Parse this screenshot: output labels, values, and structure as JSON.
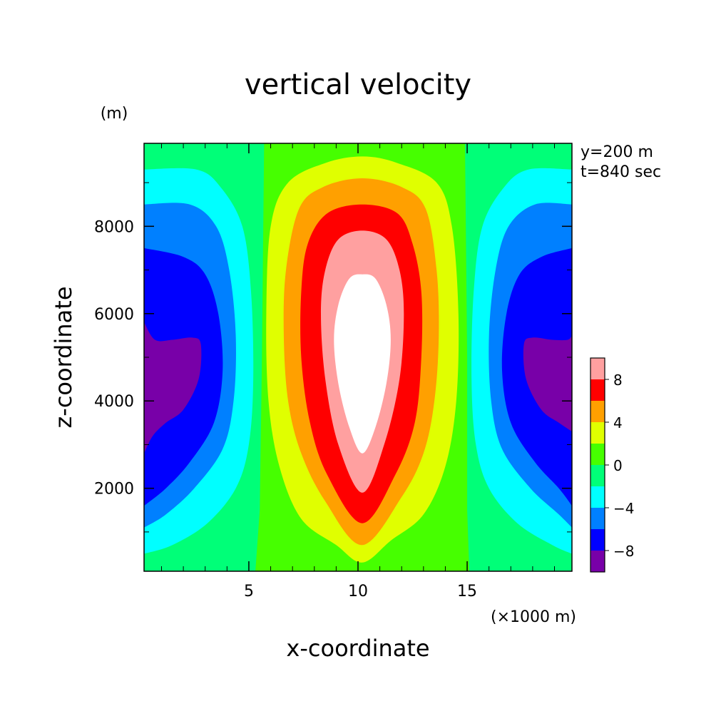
{
  "chart_data": {
    "type": "heatmap",
    "subtype": "filled-contour",
    "title": "vertical velocity",
    "xlabel": "x-coordinate",
    "ylabel": "z-coordinate",
    "x_unit": "(×1000 m)",
    "y_unit": "(m)",
    "annotations": [
      "y=200 m",
      "t=840 sec"
    ],
    "xlim": [
      0.2,
      19.8
    ],
    "ylim": [
      100,
      9900
    ],
    "x_ticks": [
      5,
      10,
      15
    ],
    "x_tick_labels": [
      "5",
      "10",
      "15"
    ],
    "y_ticks": [
      2000,
      4000,
      6000,
      8000
    ],
    "y_tick_labels": [
      "2000",
      "4000",
      "6000",
      "8000"
    ],
    "grid": false,
    "colorbar": {
      "levels": [
        -10,
        -8,
        -6,
        -4,
        -2,
        0,
        2,
        4,
        6,
        8,
        10
      ],
      "tick_values": [
        -8,
        -4,
        0,
        4,
        8
      ],
      "tick_labels": [
        "−8",
        "−4",
        "0",
        "4",
        "8"
      ],
      "colors": [
        "#7800a8",
        "#0000ff",
        "#0080ff",
        "#00ffff",
        "#00ff78",
        "#46ff00",
        "#e0ff00",
        "#ffa000",
        "#ff0000",
        "#ffa0a0"
      ],
      "above_max_color": "#ffffff"
    },
    "contours": [
      {
        "level": 0,
        "sides": [
          "left",
          "right"
        ],
        "points": [
          [
            5.7,
            9900
          ],
          [
            5.6,
            5000
          ],
          [
            5.5,
            1500
          ],
          [
            5.3,
            100
          ]
        ]
      },
      {
        "level": 0,
        "sides": [
          "left",
          "right"
        ],
        "points": [
          [
            14.9,
            9900
          ],
          [
            15.0,
            5000
          ],
          [
            15.0,
            1500
          ],
          [
            15.1,
            100
          ]
        ]
      },
      {
        "level": 2,
        "points": [
          [
            10.2,
            9600
          ],
          [
            11.8,
            9450
          ],
          [
            13.6,
            9000
          ],
          [
            14.3,
            8000
          ],
          [
            14.6,
            6000
          ],
          [
            14.5,
            4000
          ],
          [
            14.0,
            2500
          ],
          [
            13.0,
            1400
          ],
          [
            11.5,
            800
          ],
          [
            10.2,
            300
          ],
          [
            9.0,
            700
          ],
          [
            7.4,
            1300
          ],
          [
            6.4,
            2500
          ],
          [
            5.9,
            4000
          ],
          [
            5.8,
            6000
          ],
          [
            6.0,
            8000
          ],
          [
            6.8,
            9000
          ],
          [
            8.5,
            9450
          ]
        ]
      },
      {
        "level": 4,
        "points": [
          [
            10.2,
            9100
          ],
          [
            12.0,
            8900
          ],
          [
            13.1,
            8400
          ],
          [
            13.6,
            7000
          ],
          [
            13.7,
            5500
          ],
          [
            13.5,
            4000
          ],
          [
            13.0,
            2800
          ],
          [
            12.0,
            1800
          ],
          [
            10.2,
            700
          ],
          [
            8.5,
            1700
          ],
          [
            7.4,
            2800
          ],
          [
            6.8,
            4000
          ],
          [
            6.6,
            5500
          ],
          [
            6.7,
            7000
          ],
          [
            7.3,
            8400
          ],
          [
            8.4,
            8900
          ]
        ]
      },
      {
        "level": 6,
        "points": [
          [
            10.2,
            8500
          ],
          [
            11.8,
            8300
          ],
          [
            12.5,
            7600
          ],
          [
            12.9,
            6500
          ],
          [
            12.9,
            5000
          ],
          [
            12.6,
            3500
          ],
          [
            11.7,
            2300
          ],
          [
            10.2,
            1200
          ],
          [
            8.6,
            2300
          ],
          [
            7.8,
            3500
          ],
          [
            7.4,
            5000
          ],
          [
            7.4,
            6500
          ],
          [
            7.7,
            7600
          ],
          [
            8.6,
            8300
          ]
        ]
      },
      {
        "level": 8,
        "points": [
          [
            10.2,
            7900
          ],
          [
            11.3,
            7700
          ],
          [
            11.9,
            7000
          ],
          [
            12.1,
            6000
          ],
          [
            11.9,
            4500
          ],
          [
            11.2,
            3000
          ],
          [
            10.2,
            1900
          ],
          [
            9.1,
            3000
          ],
          [
            8.5,
            4500
          ],
          [
            8.3,
            6000
          ],
          [
            8.5,
            7000
          ],
          [
            9.1,
            7700
          ]
        ]
      },
      {
        "level": 10,
        "points": [
          [
            10.2,
            6900
          ],
          [
            10.8,
            6800
          ],
          [
            11.3,
            6200
          ],
          [
            11.5,
            5400
          ],
          [
            11.3,
            4400
          ],
          [
            10.8,
            3400
          ],
          [
            10.2,
            2800
          ],
          [
            9.6,
            3400
          ],
          [
            9.1,
            4400
          ],
          [
            8.9,
            5400
          ],
          [
            9.1,
            6200
          ],
          [
            9.6,
            6800
          ]
        ]
      },
      {
        "level": -2,
        "side": "left",
        "points": [
          [
            0.2,
            9300
          ],
          [
            2.6,
            9300
          ],
          [
            3.7,
            8900
          ],
          [
            4.7,
            8000
          ],
          [
            5.1,
            6500
          ],
          [
            5.2,
            4500
          ],
          [
            5.0,
            3000
          ],
          [
            4.4,
            2000
          ],
          [
            3.1,
            1200
          ],
          [
            1.5,
            700
          ],
          [
            0.2,
            500
          ]
        ]
      },
      {
        "level": -4,
        "side": "left",
        "points": [
          [
            0.2,
            8500
          ],
          [
            2.3,
            8500
          ],
          [
            3.5,
            8000
          ],
          [
            4.1,
            7000
          ],
          [
            4.4,
            5500
          ],
          [
            4.3,
            4000
          ],
          [
            3.8,
            2900
          ],
          [
            2.5,
            2000
          ],
          [
            1.2,
            1400
          ],
          [
            0.2,
            1100
          ]
        ]
      },
      {
        "level": -6,
        "side": "left",
        "points": [
          [
            0.2,
            7500
          ],
          [
            2.0,
            7300
          ],
          [
            3.0,
            6900
          ],
          [
            3.6,
            6000
          ],
          [
            3.8,
            4700
          ],
          [
            3.4,
            3500
          ],
          [
            2.3,
            2600
          ],
          [
            1.2,
            2000
          ],
          [
            0.2,
            1600
          ]
        ]
      },
      {
        "level": -8,
        "side": "left",
        "points": [
          [
            0.2,
            5800
          ],
          [
            0.7,
            5400
          ],
          [
            1.5,
            5400
          ],
          [
            2.4,
            5450
          ],
          [
            2.8,
            5300
          ],
          [
            2.7,
            4500
          ],
          [
            2.0,
            3800
          ],
          [
            1.2,
            3500
          ],
          [
            0.6,
            3200
          ],
          [
            0.2,
            2800
          ]
        ]
      },
      {
        "level": -2,
        "side": "right",
        "points": [
          [
            19.8,
            9300
          ],
          [
            17.8,
            9300
          ],
          [
            16.7,
            8900
          ],
          [
            15.7,
            8000
          ],
          [
            15.3,
            6500
          ],
          [
            15.2,
            4500
          ],
          [
            15.4,
            3000
          ],
          [
            16.0,
            2000
          ],
          [
            17.3,
            1200
          ],
          [
            18.9,
            700
          ],
          [
            19.8,
            500
          ]
        ]
      },
      {
        "level": -4,
        "side": "right",
        "points": [
          [
            19.8,
            8500
          ],
          [
            18.1,
            8500
          ],
          [
            16.9,
            8000
          ],
          [
            16.3,
            7000
          ],
          [
            16.0,
            5500
          ],
          [
            16.1,
            4000
          ],
          [
            16.6,
            2900
          ],
          [
            17.9,
            2000
          ],
          [
            19.2,
            1400
          ],
          [
            19.8,
            1100
          ]
        ]
      },
      {
        "level": -6,
        "side": "right",
        "points": [
          [
            19.8,
            7500
          ],
          [
            18.4,
            7300
          ],
          [
            17.4,
            6900
          ],
          [
            16.8,
            6000
          ],
          [
            16.6,
            4700
          ],
          [
            17.0,
            3500
          ],
          [
            18.1,
            2600
          ],
          [
            19.2,
            2000
          ],
          [
            19.8,
            1600
          ]
        ]
      },
      {
        "level": -8,
        "side": "right",
        "points": [
          [
            19.8,
            5500
          ],
          [
            19.6,
            5400
          ],
          [
            18.9,
            5400
          ],
          [
            18.0,
            5450
          ],
          [
            17.6,
            5300
          ],
          [
            17.7,
            4500
          ],
          [
            18.4,
            3800
          ],
          [
            19.2,
            3500
          ],
          [
            19.8,
            3300
          ]
        ]
      }
    ]
  }
}
